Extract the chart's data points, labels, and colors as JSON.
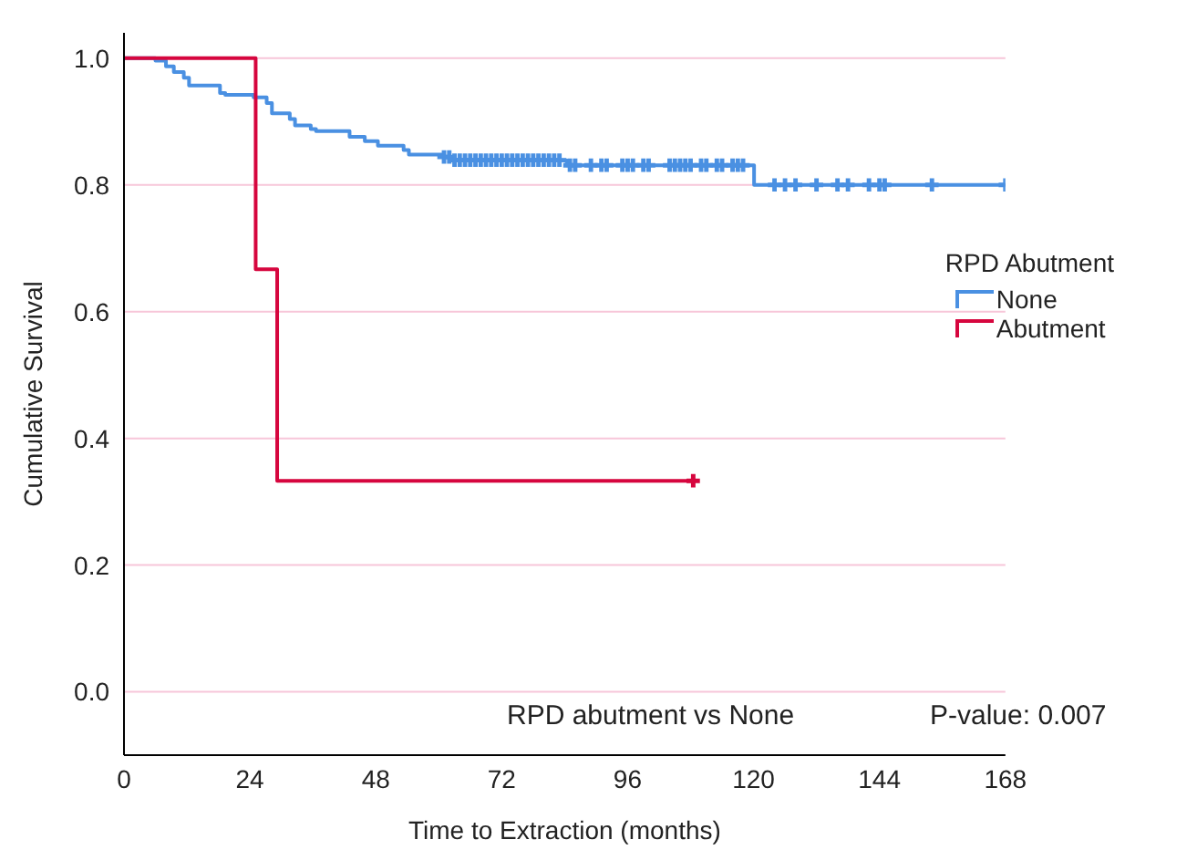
{
  "chart_data": {
    "type": "step",
    "xlabel": "Time to Extraction (months)",
    "ylabel": "Cumulative Survival",
    "legend_title": "RPD Abutment",
    "xlim": [
      0,
      168
    ],
    "xticks": [
      0,
      24,
      48,
      72,
      96,
      120,
      144,
      168
    ],
    "ylim": [
      -0.1,
      1.04
    ],
    "yticks": [
      {
        "value": 0,
        "label": "0.0"
      },
      0.2,
      0.4,
      0.6,
      0.8,
      {
        "value": 1,
        "label": "1.0"
      }
    ],
    "grid": "y",
    "legend": "right",
    "line_style": "solid",
    "series": [
      {
        "name": "None",
        "color": "#4a90e2",
        "x": [
          0,
          6,
          8,
          9.5,
          11.4,
          12.4,
          18.3,
          19.3,
          24.7,
          27.2,
          28.2,
          31.6,
          32.6,
          35.6,
          36.6,
          43,
          45.9,
          48.4,
          53.3,
          54.3,
          60.7,
          62.7,
          84.4,
          120.1,
          168
        ],
        "values": [
          1,
          0.996,
          0.987,
          0.978,
          0.969,
          0.957,
          0.945,
          0.942,
          0.938,
          0.929,
          0.913,
          0.904,
          0.894,
          0.888,
          0.885,
          0.876,
          0.869,
          0.862,
          0.855,
          0.848,
          0.844,
          0.839,
          0.831,
          0.8,
          0.8
        ]
      },
      {
        "name": "Abutment",
        "color": "#d6063e",
        "x": [
          0,
          25.1,
          29.2,
          108.5
        ],
        "values": [
          1,
          0.667,
          0.333,
          0.333
        ]
      },
      {
        "type": "scatter",
        "marker": "cross",
        "color": "#4a90e2",
        "x": [
          61,
          62,
          63,
          64,
          65,
          66,
          67,
          68,
          69,
          70,
          71,
          72,
          73,
          74,
          75,
          76,
          77,
          78,
          79,
          80,
          81,
          82,
          83,
          85,
          86,
          89,
          91,
          92,
          95,
          96,
          97,
          99,
          100,
          104,
          105,
          106,
          107,
          108,
          110,
          111,
          113,
          114,
          116,
          117,
          118,
          124,
          126,
          128,
          132,
          136,
          138,
          142,
          144,
          145,
          154,
          168
        ],
        "values": [
          0.844,
          0.844,
          0.839,
          0.839,
          0.839,
          0.839,
          0.839,
          0.839,
          0.839,
          0.839,
          0.839,
          0.839,
          0.839,
          0.839,
          0.839,
          0.839,
          0.839,
          0.839,
          0.839,
          0.839,
          0.839,
          0.839,
          0.839,
          0.831,
          0.831,
          0.831,
          0.831,
          0.831,
          0.831,
          0.831,
          0.831,
          0.831,
          0.831,
          0.831,
          0.831,
          0.831,
          0.831,
          0.831,
          0.831,
          0.831,
          0.831,
          0.831,
          0.831,
          0.831,
          0.831,
          0.8,
          0.8,
          0.8,
          0.8,
          0.8,
          0.8,
          0.8,
          0.8,
          0.8,
          0.8,
          0.8
        ]
      },
      {
        "type": "scatter",
        "marker": "cross",
        "color": "#d6063e",
        "x": [
          108.5
        ],
        "values": [
          0.333
        ]
      }
    ],
    "annotations": [
      "RPD abutment vs None",
      "P-value: 0.007"
    ]
  }
}
